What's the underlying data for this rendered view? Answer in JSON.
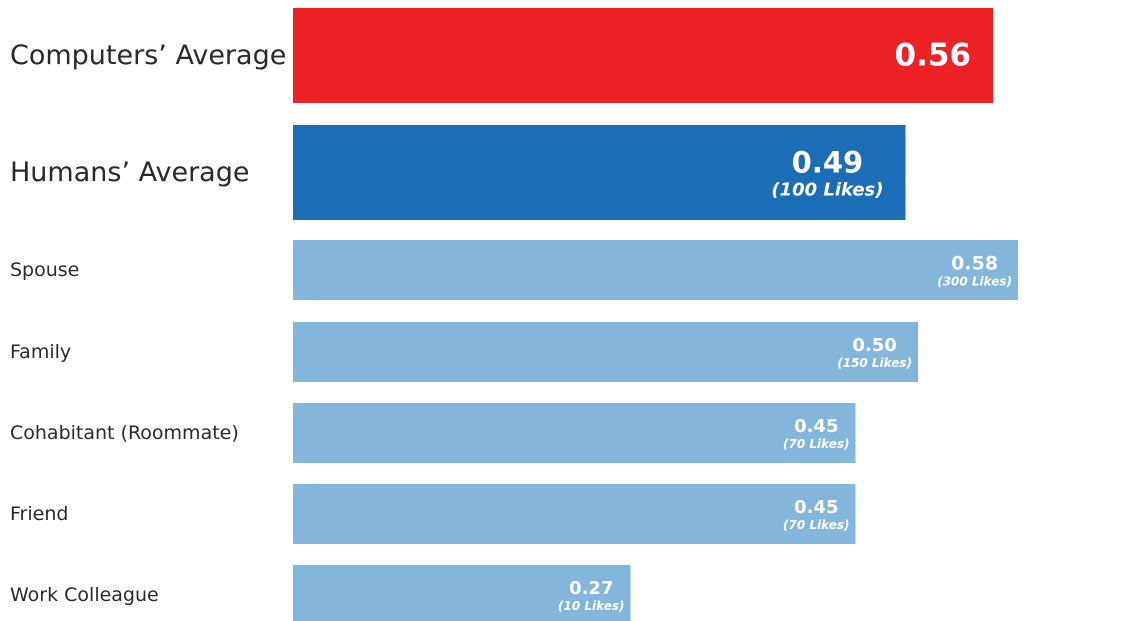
{
  "chart_data": {
    "type": "bar",
    "orientation": "horizontal",
    "title": "",
    "xlabel": "",
    "ylabel": "",
    "grid": false,
    "categories": [
      "Computers’ Average",
      "Humans’ Average",
      "Spouse",
      "Family",
      "Cohabitant (Roommate)",
      "Friend",
      "Work Colleague"
    ],
    "values": [
      0.56,
      0.49,
      0.58,
      0.5,
      0.45,
      0.45,
      0.27
    ],
    "value_labels": [
      "0.56",
      "0.49",
      "0.58",
      "0.50",
      "0.45",
      "0.45",
      "0.27"
    ],
    "sub_labels": [
      "",
      "(100 Likes)",
      "(300 Likes)",
      "(150 Likes)",
      "(70 Likes)",
      "(70 Likes)",
      "(10 Likes)"
    ],
    "colors": [
      "#ec2227",
      "#1b6db5",
      "#84b6dc",
      "#84b6dc",
      "#84b6dc",
      "#84b6dc",
      "#84b6dc"
    ]
  }
}
